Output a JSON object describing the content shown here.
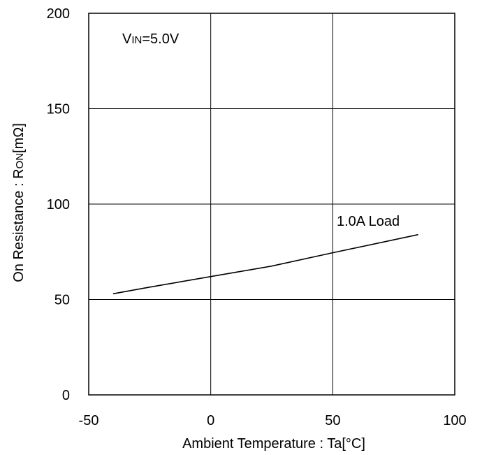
{
  "chart_data": {
    "type": "line",
    "xlabel": "Ambient Temperature : Ta[°C]",
    "ylabel": {
      "prefix": "On Resistance  : R",
      "subscript": "ON",
      "suffix": "[mΩ]"
    },
    "xlim": [
      -50,
      100
    ],
    "ylim": [
      0,
      200
    ],
    "xticks": [
      -50,
      0,
      50,
      100
    ],
    "yticks": [
      0,
      50,
      100,
      150,
      200
    ],
    "grid": true,
    "condition": {
      "prefix": "V",
      "subscript": "IN",
      "suffix": "=5.0V"
    },
    "series": [
      {
        "name": "1.0A Load",
        "x": [
          -40,
          -25,
          0,
          25,
          50,
          85
        ],
        "y": [
          53,
          56.5,
          62,
          67.5,
          74.5,
          84
        ]
      }
    ],
    "line_color": "#000000"
  }
}
